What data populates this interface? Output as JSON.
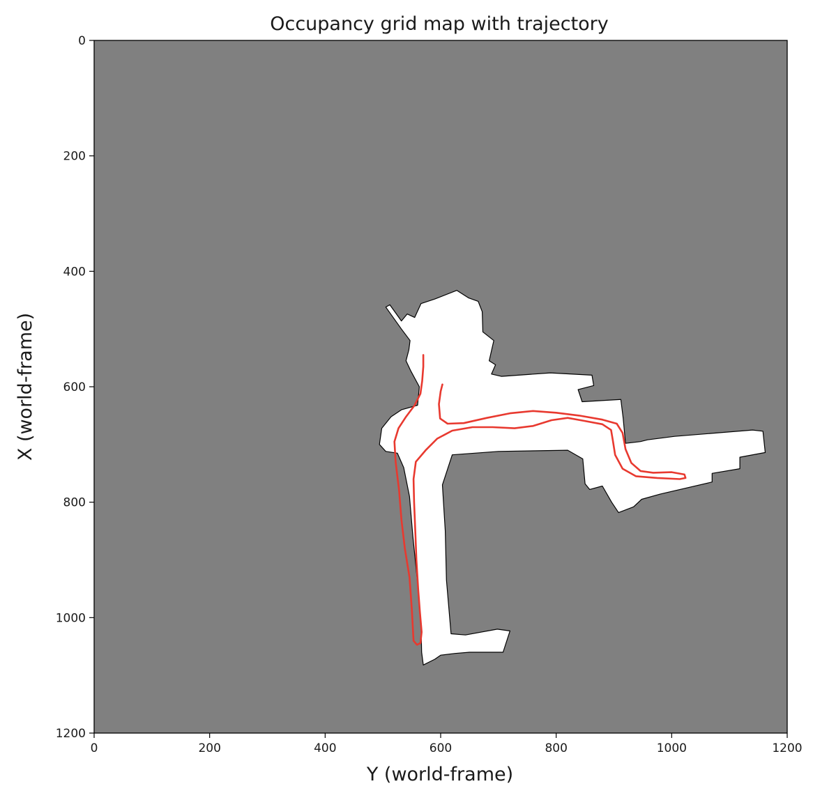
{
  "chart_data": {
    "type": "heatmap",
    "title": "Occupancy grid map with trajectory",
    "xlabel": "Y (world-frame)",
    "ylabel": "X (world-frame)",
    "xlim": [
      0,
      1200
    ],
    "ylim": [
      1200,
      0
    ],
    "xticks": [
      "0",
      "200",
      "400",
      "600",
      "800",
      "1000",
      "1200"
    ],
    "yticks": [
      "0",
      "200",
      "400",
      "600",
      "800",
      "1000",
      "1200"
    ],
    "xtick_values": [
      0,
      200,
      400,
      600,
      800,
      1000,
      1200
    ],
    "ytick_values": [
      0,
      200,
      400,
      600,
      800,
      1000,
      1200
    ],
    "grid": false,
    "colors": {
      "unknown": "#808080",
      "free": "#ffffff",
      "occupied": "#000000",
      "trajectory": "#e8392f"
    },
    "free_space_regions": [
      [
        [
          547,
          520
        ],
        [
          532,
          500
        ],
        [
          505,
          462
        ],
        [
          512,
          458
        ],
        [
          532,
          486
        ],
        [
          542,
          474
        ],
        [
          555,
          480
        ],
        [
          566,
          456
        ],
        [
          590,
          448
        ],
        [
          628,
          433
        ],
        [
          648,
          446
        ],
        [
          665,
          452
        ],
        [
          672,
          470
        ],
        [
          673,
          505
        ],
        [
          692,
          520
        ],
        [
          684,
          555
        ],
        [
          695,
          562
        ],
        [
          688,
          578
        ],
        [
          705,
          582
        ],
        [
          790,
          576
        ],
        [
          862,
          580
        ],
        [
          865,
          598
        ],
        [
          838,
          605
        ],
        [
          845,
          626
        ],
        [
          912,
          622
        ],
        [
          916,
          655
        ],
        [
          920,
          698
        ],
        [
          946,
          695
        ],
        [
          958,
          692
        ],
        [
          1005,
          686
        ],
        [
          1140,
          675
        ],
        [
          1158,
          677
        ],
        [
          1162,
          714
        ],
        [
          1118,
          722
        ],
        [
          1118,
          742
        ],
        [
          1070,
          750
        ],
        [
          1070,
          765
        ],
        [
          980,
          786
        ],
        [
          948,
          795
        ],
        [
          934,
          808
        ],
        [
          908,
          818
        ],
        [
          896,
          800
        ],
        [
          880,
          772
        ],
        [
          858,
          778
        ],
        [
          850,
          768
        ],
        [
          846,
          725
        ],
        [
          820,
          710
        ],
        [
          700,
          712
        ],
        [
          620,
          718
        ],
        [
          603,
          770
        ],
        [
          608,
          850
        ],
        [
          610,
          935
        ],
        [
          618,
          1028
        ],
        [
          643,
          1030
        ],
        [
          698,
          1020
        ],
        [
          720,
          1023
        ],
        [
          708,
          1060
        ],
        [
          650,
          1060
        ],
        [
          625,
          1062
        ],
        [
          600,
          1065
        ],
        [
          590,
          1072
        ],
        [
          570,
          1082
        ],
        [
          567,
          1060
        ],
        [
          566,
          1010
        ],
        [
          560,
          940
        ],
        [
          552,
          860
        ],
        [
          546,
          790
        ],
        [
          536,
          740
        ],
        [
          525,
          715
        ],
        [
          505,
          712
        ],
        [
          494,
          700
        ],
        [
          498,
          672
        ],
        [
          514,
          652
        ],
        [
          532,
          640
        ],
        [
          560,
          632
        ],
        [
          563,
          600
        ],
        [
          548,
          572
        ],
        [
          540,
          555
        ],
        [
          545,
          536
        ]
      ]
    ],
    "trajectory": [
      [
        [
          570,
          545
        ],
        [
          570,
          565
        ],
        [
          568,
          590
        ],
        [
          565,
          612
        ],
        [
          555,
          632
        ],
        [
          540,
          652
        ],
        [
          527,
          672
        ],
        [
          520,
          695
        ],
        [
          522,
          730
        ],
        [
          528,
          780
        ],
        [
          532,
          830
        ],
        [
          538,
          880
        ],
        [
          546,
          930
        ],
        [
          550,
          985
        ],
        [
          552,
          1020
        ],
        [
          553,
          1040
        ],
        [
          559,
          1047
        ],
        [
          565,
          1044
        ],
        [
          567,
          1025
        ],
        [
          564,
          990
        ],
        [
          561,
          950
        ],
        [
          558,
          900
        ],
        [
          556,
          850
        ],
        [
          554,
          800
        ],
        [
          553,
          760
        ],
        [
          557,
          730
        ],
        [
          574,
          710
        ],
        [
          594,
          690
        ],
        [
          620,
          676
        ],
        [
          655,
          670
        ],
        [
          690,
          670
        ],
        [
          728,
          672
        ],
        [
          760,
          668
        ],
        [
          792,
          658
        ],
        [
          820,
          654
        ],
        [
          848,
          659
        ],
        [
          880,
          665
        ],
        [
          895,
          675
        ],
        [
          898,
          692
        ],
        [
          902,
          718
        ],
        [
          915,
          742
        ],
        [
          938,
          755
        ],
        [
          975,
          758
        ],
        [
          1014,
          760
        ],
        [
          1024,
          758
        ],
        [
          1022,
          752
        ],
        [
          1000,
          748
        ],
        [
          968,
          749
        ],
        [
          946,
          746
        ],
        [
          930,
          732
        ],
        [
          920,
          708
        ],
        [
          915,
          680
        ],
        [
          905,
          664
        ],
        [
          880,
          657
        ],
        [
          840,
          650
        ],
        [
          800,
          645
        ],
        [
          760,
          642
        ],
        [
          720,
          646
        ],
        [
          680,
          654
        ],
        [
          640,
          663
        ],
        [
          612,
          664
        ],
        [
          599,
          655
        ],
        [
          597,
          630
        ],
        [
          600,
          608
        ],
        [
          603,
          596
        ]
      ]
    ]
  }
}
